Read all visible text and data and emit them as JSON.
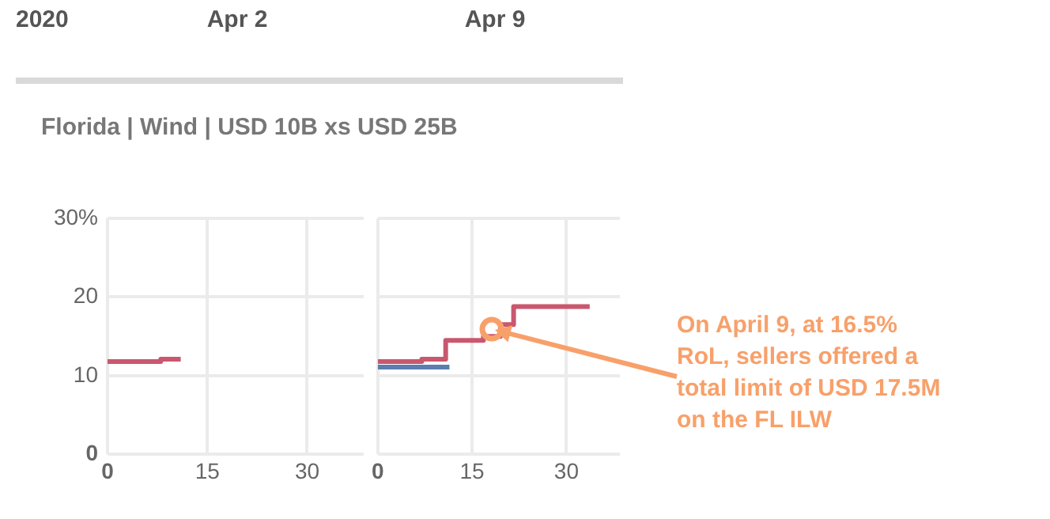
{
  "chart_data": [
    {
      "type": "step",
      "title": "Apr 2",
      "subtitle": "Florida | Wind | USD 10B xs USD 25B",
      "annotations": [
        "2020"
      ],
      "series": [
        {
          "color": "#c9586e",
          "x": [
            0,
            8,
            11
          ],
          "values": [
            11.8,
            12.1,
            12.1
          ]
        }
      ],
      "xlim": [
        0,
        38.5
      ],
      "xticks": [
        0,
        15,
        30
      ],
      "ylim": [
        0,
        30
      ],
      "yticks": [
        0,
        10,
        20,
        {
          "value": 30,
          "label": "30%"
        }
      ],
      "grid": true
    },
    {
      "type": "step",
      "title": "Apr 9",
      "tick_labels": "x",
      "annotations": [
        {
          "text": "On April 9, at 16.5% RoL, sellers offered a total limit of USD 17.5M on the FL ILW"
        }
      ],
      "series": [
        {
          "color": "#c9586e",
          "x": [
            0,
            7,
            10.8,
            16.8,
            19.5,
            21.6,
            33.7
          ],
          "values": [
            11.8,
            12.1,
            14.5,
            15,
            16.5,
            18.8,
            18.8
          ]
        },
        {
          "color": "#5b7db1",
          "x": [
            0,
            11.4
          ],
          "values": [
            11.1,
            11.1
          ]
        }
      ],
      "xlim": [
        0,
        38.5
      ],
      "xticks": [
        0,
        15,
        30
      ],
      "ylim": [
        0,
        30
      ],
      "yticks": [
        0,
        10,
        20,
        30
      ],
      "grid": true
    }
  ]
}
